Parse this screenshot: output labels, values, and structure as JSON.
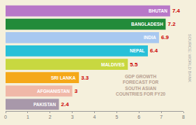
{
  "chart_data": {
    "type": "bar",
    "orientation": "horizontal",
    "categories": [
      "PAKISTAN",
      "AFGHANISTAN",
      "SRI LANKA",
      "MALDIVES",
      "NEPAL",
      "INDIA",
      "BANGLADESH",
      "BHUTAN"
    ],
    "values": [
      2.4,
      3,
      3.3,
      5.5,
      6.4,
      6.9,
      7.2,
      7.4
    ],
    "colors": [
      "#a898aa",
      "#f0b8a8",
      "#f5a818",
      "#c8d840",
      "#28c0d8",
      "#a8c8f0",
      "#228b3a",
      "#b878c8"
    ],
    "data_labels": true,
    "xlim": [
      0,
      8
    ],
    "xticks": [
      0,
      1,
      2,
      3,
      4,
      5,
      6,
      7,
      8
    ],
    "grid": false,
    "tick_labels": "x",
    "annotations": [
      "GDP GROWTH\nFORECAST FOR\nSOUTH ASIAN\nCOUNTRIES FOR FY20",
      "SOURCE: WORLD BANK"
    ]
  }
}
